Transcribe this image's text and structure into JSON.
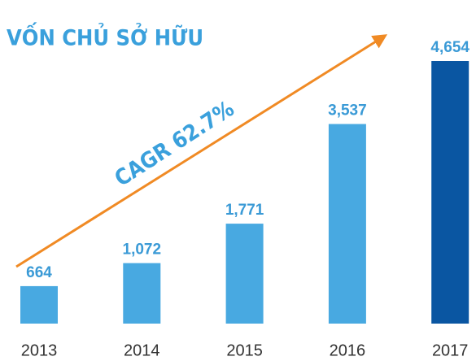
{
  "chart_data": {
    "type": "bar",
    "title": "VỐN CHỦ SỞ HỮU",
    "annotation": "CAGR 62.7%",
    "categories": [
      "2013",
      "2014",
      "2015",
      "2016",
      "2017"
    ],
    "values": [
      664,
      1072,
      1771,
      3537,
      4654
    ],
    "value_labels": [
      "664",
      "1,072",
      "1,771",
      "3,537",
      "4,654"
    ],
    "colors": [
      "#48a9e1",
      "#48a9e1",
      "#48a9e1",
      "#48a9e1",
      "#0a56a2"
    ]
  }
}
